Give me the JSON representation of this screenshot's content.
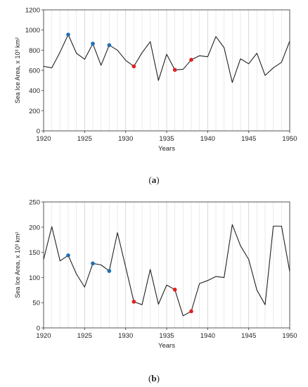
{
  "chart_data": [
    {
      "type": "line",
      "panel_label": "a",
      "ylabel": "Sea Ice Area, x 10³ km²",
      "xlabel": "Years",
      "xlim": [
        1920,
        1950
      ],
      "ylim": [
        0,
        1200
      ],
      "xticks": [
        1920,
        1925,
        1930,
        1935,
        1940,
        1945,
        1950
      ],
      "yticks": [
        0,
        200,
        400,
        600,
        800,
        1000,
        1200
      ],
      "grid": "vertical minor lines each year",
      "x": [
        1920,
        1921,
        1922,
        1923,
        1924,
        1925,
        1926,
        1927,
        1928,
        1929,
        1930,
        1931,
        1932,
        1933,
        1934,
        1935,
        1936,
        1937,
        1938,
        1939,
        1940,
        1941,
        1942,
        1943,
        1944,
        1945,
        1946,
        1947,
        1948,
        1949,
        1950
      ],
      "values": [
        640,
        625,
        780,
        955,
        770,
        710,
        865,
        650,
        850,
        800,
        700,
        640,
        775,
        885,
        500,
        760,
        605,
        610,
        705,
        745,
        735,
        935,
        825,
        480,
        715,
        665,
        770,
        550,
        625,
        680,
        890
      ],
      "line_color": "#222222",
      "highlight_points": [
        {
          "x": 1923,
          "y": 955,
          "color": "#1f6fb4"
        },
        {
          "x": 1926,
          "y": 865,
          "color": "#1f6fb4"
        },
        {
          "x": 1928,
          "y": 850,
          "color": "#1f6fb4"
        },
        {
          "x": 1931,
          "y": 640,
          "color": "#e02020"
        },
        {
          "x": 1936,
          "y": 605,
          "color": "#e02020"
        },
        {
          "x": 1938,
          "y": 705,
          "color": "#e02020"
        }
      ]
    },
    {
      "type": "line",
      "panel_label": "b",
      "ylabel": "Sea Ice Area, x 10³ km²",
      "xlabel": "Years",
      "xlim": [
        1920,
        1950
      ],
      "ylim": [
        0,
        250
      ],
      "xticks": [
        1920,
        1925,
        1930,
        1935,
        1940,
        1945,
        1950
      ],
      "yticks": [
        0,
        50,
        100,
        150,
        200,
        250
      ],
      "grid": "vertical minor lines each year",
      "x": [
        1920,
        1921,
        1922,
        1923,
        1924,
        1925,
        1926,
        1927,
        1928,
        1929,
        1930,
        1931,
        1932,
        1933,
        1934,
        1935,
        1936,
        1937,
        1938,
        1939,
        1940,
        1941,
        1942,
        1943,
        1944,
        1945,
        1946,
        1947,
        1948,
        1949,
        1950
      ],
      "values": [
        136,
        201,
        133,
        144,
        107,
        81,
        128,
        125,
        113,
        189,
        121,
        52,
        46,
        116,
        47,
        85,
        76,
        24,
        33,
        88,
        94,
        102,
        100,
        205,
        163,
        136,
        75,
        46,
        202,
        202,
        112
      ],
      "line_color": "#222222",
      "highlight_points": [
        {
          "x": 1923,
          "y": 144,
          "color": "#1f6fb4"
        },
        {
          "x": 1926,
          "y": 128,
          "color": "#1f6fb4"
        },
        {
          "x": 1928,
          "y": 113,
          "color": "#1f6fb4"
        },
        {
          "x": 1931,
          "y": 52,
          "color": "#e02020"
        },
        {
          "x": 1936,
          "y": 76,
          "color": "#e02020"
        },
        {
          "x": 1938,
          "y": 33,
          "color": "#e02020"
        }
      ]
    }
  ],
  "captions": {
    "a": {
      "open": "(",
      "letter": "a",
      "close": ")"
    },
    "b": {
      "open": "(",
      "letter": "b",
      "close": ")"
    }
  }
}
